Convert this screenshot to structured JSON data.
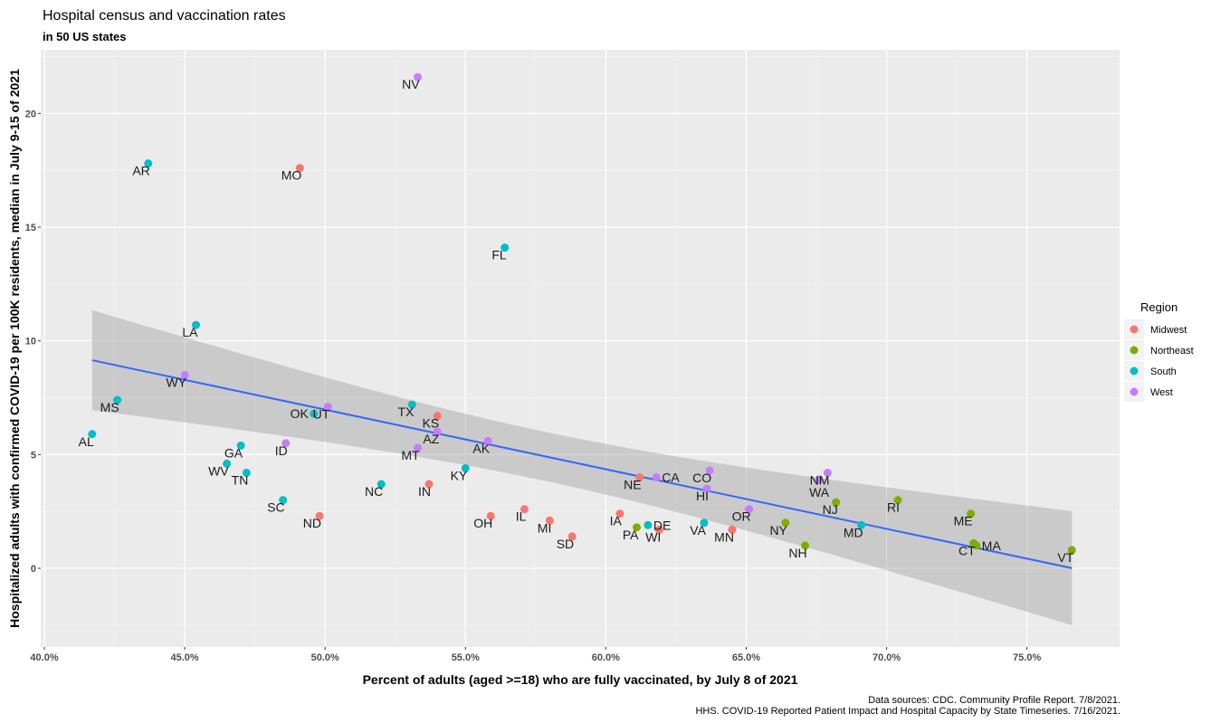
{
  "chart_data": {
    "type": "scatter",
    "title": "Hospital census and vaccination rates",
    "subtitle": "in 50 US states",
    "xlabel": "Percent of adults (aged >=18) who are fully vaccinated, by July 8 of 2021",
    "ylabel": "Hospitalized adults with confirmed COVID-19 per 100K residents, median in July 9-15 of 2021",
    "xlim": [
      39.87,
      78.3
    ],
    "ylim": [
      -3.46,
      22.8
    ],
    "x_ticks": [
      40,
      45,
      50,
      55,
      60,
      65,
      70,
      75
    ],
    "x_tick_labels": [
      "40.0%",
      "45.0%",
      "50.0%",
      "55.0%",
      "60.0%",
      "65.0%",
      "70.0%",
      "75.0%"
    ],
    "y_ticks": [
      0,
      5,
      10,
      15,
      20
    ],
    "y_tick_labels": [
      "0",
      "5",
      "10",
      "15",
      "20"
    ],
    "grid": true,
    "trend": "linear fit with 95% confidence band",
    "trend_color": "#3366FF",
    "legend": {
      "title": "Region",
      "placement": "right",
      "entries": [
        {
          "name": "Midwest",
          "color": "#F8766D"
        },
        {
          "name": "Northeast",
          "color": "#7CAE00"
        },
        {
          "name": "South",
          "color": "#00BFC4"
        },
        {
          "name": "West",
          "color": "#C77CFF"
        }
      ]
    },
    "points": [
      {
        "state": "NV",
        "region": "West",
        "x": 53.3,
        "y": 21.6
      },
      {
        "state": "MO",
        "region": "Midwest",
        "x": 49.1,
        "y": 17.6
      },
      {
        "state": "AR",
        "region": "South",
        "x": 43.7,
        "y": 17.8
      },
      {
        "state": "FL",
        "region": "South",
        "x": 56.4,
        "y": 14.1
      },
      {
        "state": "LA",
        "region": "South",
        "x": 45.4,
        "y": 10.7
      },
      {
        "state": "WY",
        "region": "West",
        "x": 45.0,
        "y": 8.5
      },
      {
        "state": "MS",
        "region": "South",
        "x": 42.6,
        "y": 7.4
      },
      {
        "state": "AL",
        "region": "South",
        "x": 41.7,
        "y": 5.9
      },
      {
        "state": "UT",
        "region": "West",
        "x": 50.1,
        "y": 7.1
      },
      {
        "state": "OK",
        "region": "South",
        "x": 49.6,
        "y": 6.8
      },
      {
        "state": "TX",
        "region": "South",
        "x": 53.1,
        "y": 7.2
      },
      {
        "state": "KS",
        "region": "Midwest",
        "x": 54.0,
        "y": 6.7
      },
      {
        "state": "AZ",
        "region": "West",
        "x": 54.0,
        "y": 6.0
      },
      {
        "state": "AK",
        "region": "West",
        "x": 55.8,
        "y": 5.6
      },
      {
        "state": "MT",
        "region": "West",
        "x": 53.3,
        "y": 5.3
      },
      {
        "state": "ID",
        "region": "West",
        "x": 48.6,
        "y": 5.5
      },
      {
        "state": "GA",
        "region": "South",
        "x": 47.0,
        "y": 5.4
      },
      {
        "state": "WV",
        "region": "South",
        "x": 46.5,
        "y": 4.6
      },
      {
        "state": "TN",
        "region": "South",
        "x": 47.2,
        "y": 4.2
      },
      {
        "state": "KY",
        "region": "South",
        "x": 55.0,
        "y": 4.4
      },
      {
        "state": "IN",
        "region": "Midwest",
        "x": 53.7,
        "y": 3.7
      },
      {
        "state": "NC",
        "region": "South",
        "x": 52.0,
        "y": 3.7
      },
      {
        "state": "SC",
        "region": "South",
        "x": 48.5,
        "y": 3.0
      },
      {
        "state": "ND",
        "region": "Midwest",
        "x": 49.8,
        "y": 2.3
      },
      {
        "state": "OH",
        "region": "Midwest",
        "x": 55.9,
        "y": 2.3
      },
      {
        "state": "IL",
        "region": "Midwest",
        "x": 57.1,
        "y": 2.6
      },
      {
        "state": "MI",
        "region": "Midwest",
        "x": 58.0,
        "y": 2.1
      },
      {
        "state": "SD",
        "region": "Midwest",
        "x": 58.8,
        "y": 1.4
      },
      {
        "state": "IA",
        "region": "Midwest",
        "x": 60.5,
        "y": 2.4
      },
      {
        "state": "NE",
        "region": "Midwest",
        "x": 61.2,
        "y": 4.0
      },
      {
        "state": "CA",
        "region": "West",
        "x": 61.8,
        "y": 4.0
      },
      {
        "state": "PA",
        "region": "Northeast",
        "x": 61.1,
        "y": 1.8
      },
      {
        "state": "DE",
        "region": "South",
        "x": 61.5,
        "y": 1.9
      },
      {
        "state": "WI",
        "region": "Midwest",
        "x": 61.9,
        "y": 1.7
      },
      {
        "state": "CO",
        "region": "West",
        "x": 63.7,
        "y": 4.3
      },
      {
        "state": "HI",
        "region": "West",
        "x": 63.6,
        "y": 3.5
      },
      {
        "state": "VA",
        "region": "South",
        "x": 63.5,
        "y": 2.0
      },
      {
        "state": "OR",
        "region": "West",
        "x": 65.1,
        "y": 2.6
      },
      {
        "state": "MN",
        "region": "Midwest",
        "x": 64.5,
        "y": 1.7
      },
      {
        "state": "NY",
        "region": "Northeast",
        "x": 66.4,
        "y": 2.0
      },
      {
        "state": "NH",
        "region": "Northeast",
        "x": 67.1,
        "y": 1.0
      },
      {
        "state": "NM",
        "region": "West",
        "x": 67.9,
        "y": 4.2
      },
      {
        "state": "WA",
        "region": "West",
        "x": 67.6,
        "y": 3.9
      },
      {
        "state": "NJ",
        "region": "Northeast",
        "x": 68.2,
        "y": 2.9
      },
      {
        "state": "MD",
        "region": "South",
        "x": 69.1,
        "y": 1.9
      },
      {
        "state": "RI",
        "region": "Northeast",
        "x": 70.4,
        "y": 3.0
      },
      {
        "state": "ME",
        "region": "Northeast",
        "x": 73.0,
        "y": 2.4
      },
      {
        "state": "CT",
        "region": "Northeast",
        "x": 73.1,
        "y": 1.1
      },
      {
        "state": "MA",
        "region": "Northeast",
        "x": 73.2,
        "y": 1.0
      },
      {
        "state": "VT",
        "region": "Northeast",
        "x": 76.6,
        "y": 0.8
      }
    ],
    "caption": [
      "Data sources: CDC. Community Profile Report. 7/8/2021.",
      "HHS. COVID-19 Reported Patient Impact and Hospital Capacity by State Timeseries. 7/16/2021."
    ]
  }
}
